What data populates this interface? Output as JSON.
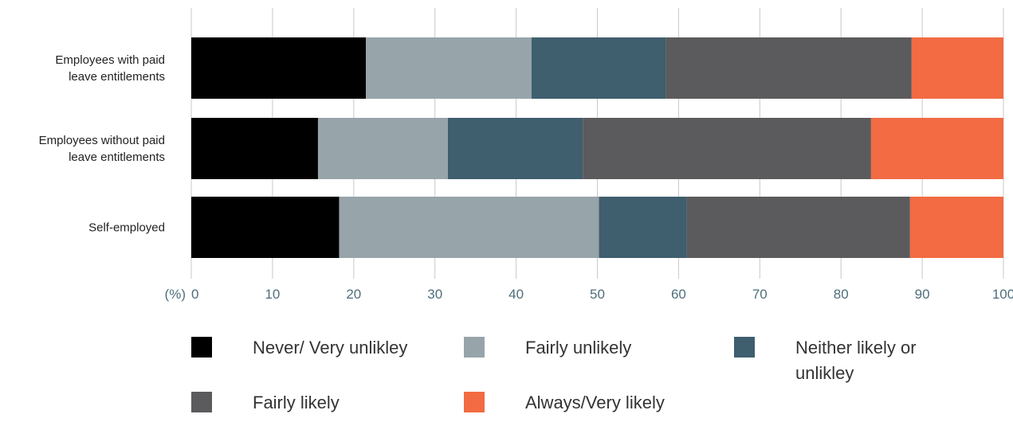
{
  "chart_data": {
    "type": "bar",
    "orientation": "horizontal",
    "stacked": true,
    "unit_label": "(%)",
    "categories": [
      "Employees with paid leave entitlements",
      "Employees without paid leave entitlements",
      "Self-employed"
    ],
    "series": [
      {
        "name": "Never/ Very unlikley",
        "color": "#000000",
        "values": [
          21.5,
          15.6,
          18.2
        ]
      },
      {
        "name": "Fairly unlikely",
        "color": "#97a4aa",
        "values": [
          20.4,
          16.0,
          32.0
        ]
      },
      {
        "name": "Neither likely or unlikley",
        "color": "#3f5e6e",
        "values": [
          16.5,
          16.6,
          10.8
        ]
      },
      {
        "name": "Fairly likely",
        "color": "#5b5b5d",
        "values": [
          30.3,
          35.5,
          27.5
        ]
      },
      {
        "name": "Always/Very likely",
        "color": "#f26b43",
        "values": [
          11.3,
          16.3,
          11.5
        ]
      }
    ],
    "xlim": [
      0,
      100
    ],
    "xticks": [
      0,
      10,
      20,
      30,
      40,
      50,
      60,
      70,
      80,
      90,
      100
    ],
    "grid": "vertical",
    "legend_position": "bottom"
  }
}
